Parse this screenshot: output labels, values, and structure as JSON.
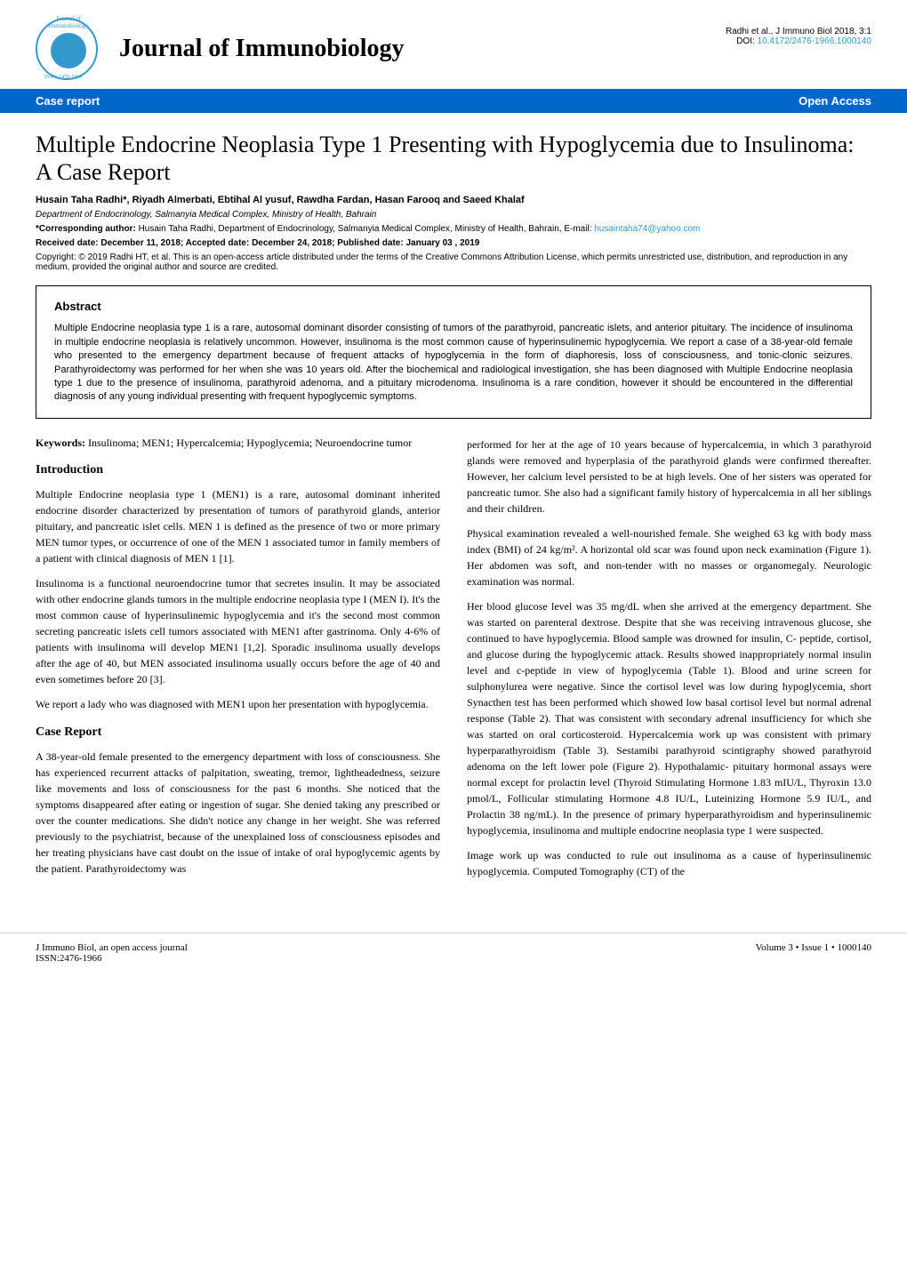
{
  "header": {
    "journal_name": "Journal of Immunobiology",
    "issn_label": "ISSN: 2476-1966",
    "citation": "Radhi et al., J Immuno Biol 2018, 3:1",
    "doi_label": "DOI: ",
    "doi": "10.4172/2476-1966.1000140"
  },
  "banner": {
    "left": "Case report",
    "right": "Open Access"
  },
  "article": {
    "title": "Multiple Endocrine Neoplasia Type 1 Presenting with Hypoglycemia due to Insulinoma: A Case Report",
    "authors": "Husain Taha Radhi*, Riyadh Almerbati, Ebtihal Al yusuf, Rawdha Fardan, Hasan Farooq and Saeed Khalaf",
    "affiliation": "Department of Endocrinology, Salmanyia Medical Complex, Ministry of Health, Bahrain",
    "corresponding_label": "*Corresponding author: ",
    "corresponding_text": "Husain Taha Radhi, Department of Endocrinology, Salmanyia Medical Complex, Ministry of Health, Bahrain, E-mail: ",
    "email": "husaintaha74@yahoo.com",
    "dates": "Received date: December 11, 2018; Accepted date: December 24, 2018; Published date: January 03 , 2019",
    "copyright": "Copyright: © 2019 Radhi HT, et al. This is an open-access article distributed under the terms of the Creative Commons Attribution License, which permits unrestricted use, distribution, and reproduction in any medium, provided the original author and source are credited."
  },
  "abstract": {
    "heading": "Abstract",
    "text": "Multiple Endocrine neoplasia type 1 is a rare, autosomal dominant disorder consisting of tumors of the parathyroid, pancreatic islets, and anterior pituitary. The incidence of insulinoma in multiple endocrine neoplasia is relatively uncommon. However, insulinoma is the most common cause of hyperinsulinemic hypoglycemia. We report a case of a 38-year-old female who presented to the emergency department because of frequent attacks of hypoglycemia in the form of diaphoresis, loss of consciousness, and tonic-clonic seizures. Parathyroidectomy was performed for her when she was 10 years old. After the biochemical and radiological investigation, she has been diagnosed with Multiple Endocrine neoplasia type 1 due to the presence of insulinoma, parathyroid adenoma, and a pituitary microdenoma. Insulinoma is a rare condition, however it should be encountered in the differential diagnosis of any young individual presenting with frequent hypoglycemic symptoms."
  },
  "keywords": {
    "label": "Keywords: ",
    "text": "Insulinoma; MEN1; Hypercalcemia; Hypoglycemia; Neuroendocrine tumor"
  },
  "sections": {
    "intro_heading": "Introduction",
    "intro_p1": "Multiple Endocrine neoplasia type 1 (MEN1) is a rare, autosomal dominant inherited endocrine disorder characterized by presentation of tumors of parathyroid glands, anterior pituitary, and pancreatic islet cells. MEN 1 is defined as the presence of two or more primary MEN tumor types, or occurrence of one of the MEN 1 associated tumor in family members of a patient with clinical diagnosis of MEN 1 [1].",
    "intro_p2": "Insulinoma is a functional neuroendocrine tumor that secretes insulin. It may be associated with other endocrine glands tumors in the multiple endocrine neoplasia type I (MEN I). It's the most common cause of hyperinsulinemic hypoglycemia and it's the second most common secreting pancreatic islets cell tumors associated with MEN1 after gastrinoma. Only 4-6% of patients with insulinoma will develop MEN1 [1,2]. Sporadic insulinoma usually develops after the age of 40, but MEN associated insulinoma usually occurs before the age of 40 and even sometimes before 20 [3].",
    "intro_p3": "We report a lady who was diagnosed with MEN1 upon her presentation with hypoglycemia.",
    "case_heading": "Case Report",
    "case_p1": "A 38-year-old female presented to the emergency department with loss of consciousness. She has experienced recurrent attacks of palpitation, sweating, tremor, lightheadedness, seizure like movements and loss of consciousness for the past 6 months. She noticed that the symptoms disappeared after eating or ingestion of sugar. She denied taking any prescribed or over the counter medications. She didn't notice any change in her weight. She was referred previously to the psychiatrist, because of the unexplained loss of consciousness episodes and her treating physicians have cast doubt on the issue of intake of oral hypoglycemic agents by the patient. Parathyroidectomy was",
    "col2_p1": "performed for her at the age of 10 years because of hypercalcemia, in which 3 parathyroid glands were removed and hyperplasia of the parathyroid glands were confirmed thereafter. However, her calcium level persisted to be at high levels. One of her sisters was operated for pancreatic tumor. She also had a significant family history of hypercalcemia in all her siblings and their children.",
    "col2_p2": "Physical examination revealed a well-nourished female. She weighed 63 kg with body mass index (BMI) of 24 kg/m². A horizontal old scar was found upon neck examination (Figure 1). Her abdomen was soft, and non-tender with no masses or organomegaly. Neurologic examination was normal.",
    "col2_p3": "Her blood glucose level was 35 mg/dL when she arrived at the emergency department. She was started on parenteral dextrose. Despite that she was receiving intravenous glucose, she continued to have hypoglycemia. Blood sample was drowned for insulin, C- peptide, cortisol, and glucose during the hypoglycemic attack. Results showed inappropriately normal insulin level and c-peptide in view of hypoglycemia (Table 1). Blood and urine screen for sulphonylurea were negative. Since the cortisol level was low during hypoglycemia, short Synacthen test has been performed which showed low basal cortisol level but normal adrenal response (Table 2). That was consistent with secondary adrenal insufficiency for which she was started on oral corticosteroid. Hypercalcemia work up was consistent with primary hyperparathyroidism (Table 3). Sestamibi parathyroid scintigraphy showed parathyroid adenoma on the left lower pole (Figure 2). Hypothalamic- pituitary hormonal assays were normal except for prolactin level (Thyroid Stimulating Hormone 1.83 mIU/L, Thyroxin 13.0 pmol/L, Follicular stimulating Hormone 4.8 IU/L, Luteinizing Hormone 5.9 IU/L, and Prolactin 38 ng/mL). In the presence of primary hyperparathyroidism and hyperinsulinemic hypoglycemia, insulinoma and multiple endocrine neoplasia type 1 were suspected.",
    "col2_p4": "Image work up was conducted to rule out insulinoma as a cause of hyperinsulinemic hypoglycemia. Computed Tomography (CT) of the"
  },
  "footer": {
    "left_line1": "J Immuno Biol, an open access journal",
    "left_line2": "ISSN:2476-1966",
    "right": "Volume 3 • Issue 1 • 1000140"
  },
  "colors": {
    "banner_bg": "#0066cc",
    "banner_text": "#ffffff",
    "link_color": "#3399cc",
    "body_text": "#000000",
    "background": "#ffffff",
    "border": "#000000"
  },
  "typography": {
    "journal_title_size": 28,
    "article_title_size": 26,
    "section_heading_size": 14,
    "body_size": 12,
    "abstract_size": 11,
    "meta_size": 10
  }
}
